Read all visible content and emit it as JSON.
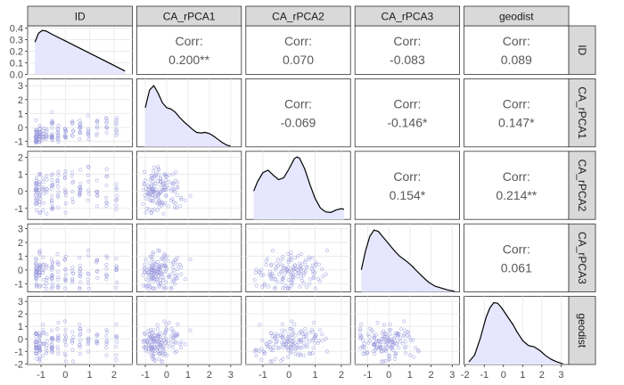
{
  "chart_data": {
    "type": "scatter_matrix",
    "variables": [
      "ID",
      "CA_rPCA1",
      "CA_rPCA2",
      "CA_rPCA3",
      "geodist"
    ],
    "axis_ranges": {
      "ID": [
        -1.55,
        2.75
      ],
      "CA_rPCA1": [
        -1.4,
        3.5
      ],
      "CA_rPCA2": [
        -1.65,
        2.35
      ],
      "CA_rPCA3": [
        -1.6,
        3.35
      ],
      "geodist": [
        -2.05,
        3.4
      ]
    },
    "x_ticks": {
      "ID": [
        -1,
        0,
        1,
        2
      ],
      "CA_rPCA1": [
        -1,
        0,
        1,
        2,
        3
      ],
      "CA_rPCA2": [
        -1,
        0,
        1,
        2
      ],
      "CA_rPCA3": [
        -1,
        0,
        1,
        2,
        3
      ],
      "geodist": [
        -2,
        -1,
        0,
        1,
        2,
        3
      ]
    },
    "y_ticks": {
      "ID": [
        "0.0",
        "0.1",
        "0.2",
        "0.3",
        "0.4"
      ],
      "CA_rPCA1": [
        "-1",
        "0",
        "1",
        "2",
        "3"
      ],
      "CA_rPCA2": [
        "-1",
        "0",
        "1",
        "2"
      ],
      "CA_rPCA3": [
        "-1",
        "0",
        "1",
        "2",
        "3"
      ],
      "geodist": [
        "-2",
        "-1",
        "0",
        "1",
        "2",
        "3"
      ]
    },
    "id_density_ylim": [
      0,
      0.42
    ],
    "density_id": {
      "x": [
        -1.25,
        -1.1,
        -0.95,
        -0.8,
        -0.5,
        0,
        0.5,
        1,
        1.5,
        2,
        2.45
      ],
      "y": [
        0.29,
        0.37,
        0.395,
        0.39,
        0.355,
        0.3,
        0.245,
        0.19,
        0.135,
        0.08,
        0.03
      ]
    },
    "densities_relative": {
      "CA_rPCA1": {
        "x": [
          -1.0,
          -0.8,
          -0.6,
          -0.4,
          -0.2,
          0,
          0.2,
          0.4,
          0.6,
          0.8,
          1.0,
          1.2,
          1.4,
          1.6,
          1.8,
          2.0,
          2.2,
          2.4,
          2.6,
          2.8,
          3.0
        ],
        "y": [
          0.62,
          0.9,
          0.97,
          0.85,
          0.7,
          0.62,
          0.6,
          0.55,
          0.47,
          0.4,
          0.34,
          0.28,
          0.23,
          0.22,
          0.23,
          0.21,
          0.17,
          0.12,
          0.07,
          0.03,
          0.01
        ]
      },
      "CA_rPCA2": {
        "x": [
          -1.35,
          -1.2,
          -1.0,
          -0.8,
          -0.6,
          -0.4,
          -0.2,
          0,
          0.2,
          0.3,
          0.4,
          0.6,
          0.8,
          1.0,
          1.2,
          1.4,
          1.6,
          1.8,
          2.0,
          2.1
        ],
        "y": [
          0.45,
          0.6,
          0.74,
          0.78,
          0.7,
          0.63,
          0.66,
          0.8,
          0.96,
          0.99,
          0.97,
          0.8,
          0.55,
          0.33,
          0.18,
          0.12,
          0.11,
          0.15,
          0.17,
          0.16
        ]
      },
      "CA_rPCA3": {
        "x": [
          -1.3,
          -1.1,
          -0.9,
          -0.7,
          -0.5,
          -0.3,
          -0.1,
          0.1,
          0.3,
          0.5,
          0.7,
          0.9,
          1.1,
          1.3,
          1.6,
          1.9,
          2.2,
          2.5,
          2.8,
          3.1
        ],
        "y": [
          0.35,
          0.65,
          0.88,
          0.98,
          0.96,
          0.88,
          0.8,
          0.72,
          0.64,
          0.57,
          0.52,
          0.47,
          0.41,
          0.34,
          0.24,
          0.15,
          0.09,
          0.06,
          0.03,
          0.01
        ]
      },
      "geodist": {
        "x": [
          -1.8,
          -1.5,
          -1.2,
          -0.9,
          -0.7,
          -0.5,
          -0.3,
          -0.1,
          0.1,
          0.3,
          0.5,
          0.7,
          1.0,
          1.3,
          1.6,
          1.9,
          2.2,
          2.5,
          2.8,
          3.1
        ],
        "y": [
          0.04,
          0.15,
          0.42,
          0.75,
          0.9,
          0.98,
          0.97,
          0.9,
          0.81,
          0.72,
          0.63,
          0.52,
          0.38,
          0.3,
          0.28,
          0.22,
          0.14,
          0.08,
          0.04,
          0.01
        ]
      }
    },
    "correlations": [
      {
        "row": "ID",
        "col": "CA_rPCA1",
        "label": "Corr:",
        "value": "0.200**"
      },
      {
        "row": "ID",
        "col": "CA_rPCA2",
        "label": "Corr:",
        "value": "0.070"
      },
      {
        "row": "ID",
        "col": "CA_rPCA3",
        "label": "Corr:",
        "value": "-0.083"
      },
      {
        "row": "ID",
        "col": "geodist",
        "label": "Corr:",
        "value": "0.089"
      },
      {
        "row": "CA_rPCA1",
        "col": "CA_rPCA2",
        "label": "Corr:",
        "value": "-0.069"
      },
      {
        "row": "CA_rPCA1",
        "col": "CA_rPCA3",
        "label": "Corr:",
        "value": "-0.146*"
      },
      {
        "row": "CA_rPCA1",
        "col": "geodist",
        "label": "Corr:",
        "value": "0.147*"
      },
      {
        "row": "CA_rPCA2",
        "col": "CA_rPCA3",
        "label": "Corr:",
        "value": "0.154*"
      },
      {
        "row": "CA_rPCA2",
        "col": "geodist",
        "label": "Corr:",
        "value": "0.214**"
      },
      {
        "row": "CA_rPCA3",
        "col": "geodist",
        "label": "Corr:",
        "value": "0.061"
      }
    ],
    "scatter_points_per_panel": 140,
    "id_values": [
      -1.2,
      -1.05,
      -0.9,
      -0.75,
      -0.55,
      -0.3,
      0,
      0.3,
      0.6,
      0.95,
      1.3,
      1.7,
      2.1
    ],
    "grid": true,
    "colors": {
      "density_fill": "#e6e6ff",
      "density_line": "#000000",
      "points": "#8c8cd9",
      "strip_fill": "#d9d9d9",
      "panel_bg": "#ffffff",
      "grid": "#ebebeb",
      "corr_text": "#595959",
      "axis_text": "#4d4d4d"
    }
  }
}
